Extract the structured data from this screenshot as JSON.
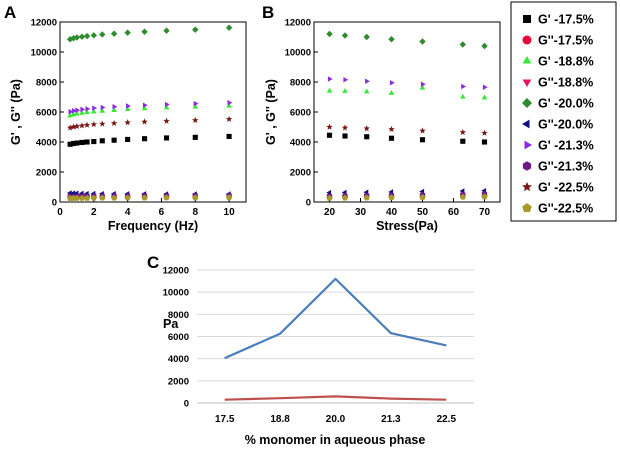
{
  "panel_labels": {
    "a": "A",
    "b": "B",
    "c": "C"
  },
  "legend": [
    {
      "label": "G' -17.5%",
      "color": "#000000",
      "marker": "square"
    },
    {
      "label": "G''-17.5%",
      "color": "#e8003c",
      "marker": "circle"
    },
    {
      "label": "G' -18.8%",
      "color": "#35e835",
      "marker": "triangle-up"
    },
    {
      "label": "G''-18.8%",
      "color": "#ee1166",
      "marker": "triangle-down"
    },
    {
      "label": "G' -20.0%",
      "color": "#2e8b2e",
      "marker": "diamond"
    },
    {
      "label": "G''-20.0%",
      "color": "#101080",
      "marker": "triangle-left"
    },
    {
      "label": "G' -21.3%",
      "color": "#8a2be2",
      "marker": "triangle-right"
    },
    {
      "label": "G''-21.3%",
      "color": "#6a1b8a",
      "marker": "hexagon"
    },
    {
      "label": "G' -22.5%",
      "color": "#7b1616",
      "marker": "star"
    },
    {
      "label": "G''-22.5%",
      "color": "#a89a2a",
      "marker": "pentagon"
    }
  ],
  "chart_data": [
    {
      "id": "A",
      "type": "scatter",
      "xlabel": "Frequency (Hz)",
      "ylabel": "G' , G'' (Pa)",
      "xlim": [
        0,
        11
      ],
      "ylim": [
        0,
        12000
      ],
      "xticks": [
        0,
        2,
        4,
        6,
        8,
        10
      ],
      "yticks": [
        0,
        2000,
        4000,
        6000,
        8000,
        10000,
        12000
      ],
      "x": [
        0.6,
        0.8,
        1.0,
        1.3,
        1.6,
        2.0,
        2.5,
        3.2,
        4.0,
        5.0,
        6.3,
        8.0,
        10.0
      ],
      "series": [
        {
          "name": "G' -17.5%",
          "values": [
            3850,
            3900,
            3930,
            3970,
            4000,
            4030,
            4080,
            4120,
            4170,
            4220,
            4270,
            4310,
            4370
          ]
        },
        {
          "name": "G''-17.5%",
          "values": [
            280,
            290,
            290,
            300,
            300,
            300,
            300,
            310,
            310,
            310,
            320,
            320,
            330
          ]
        },
        {
          "name": "G' -18.8%",
          "values": [
            5750,
            5820,
            5870,
            5920,
            5970,
            6010,
            6060,
            6110,
            6170,
            6220,
            6280,
            6330,
            6400
          ]
        },
        {
          "name": "G''-18.8%",
          "values": [
            420,
            430,
            430,
            440,
            440,
            450,
            450,
            450,
            460,
            460,
            470,
            470,
            480
          ]
        },
        {
          "name": "G' -20.0%",
          "values": [
            10850,
            10920,
            10970,
            11020,
            11060,
            11110,
            11170,
            11220,
            11290,
            11350,
            11420,
            11490,
            11620
          ]
        },
        {
          "name": "G''-20.0%",
          "values": [
            600,
            590,
            580,
            570,
            560,
            560,
            550,
            550,
            540,
            540,
            530,
            530,
            530
          ]
        },
        {
          "name": "G' -21.3%",
          "values": [
            6020,
            6080,
            6120,
            6170,
            6210,
            6260,
            6300,
            6350,
            6400,
            6450,
            6500,
            6560,
            6620
          ]
        },
        {
          "name": "G''-21.3%",
          "values": [
            350,
            360,
            360,
            370,
            370,
            380,
            380,
            390,
            390,
            400,
            400,
            410,
            420
          ]
        },
        {
          "name": "G' -22.5%",
          "values": [
            4950,
            5010,
            5050,
            5090,
            5130,
            5170,
            5210,
            5250,
            5300,
            5350,
            5400,
            5450,
            5520
          ]
        },
        {
          "name": "G''-22.5%",
          "values": [
            250,
            250,
            260,
            260,
            260,
            270,
            270,
            270,
            280,
            280,
            290,
            290,
            300
          ]
        }
      ]
    },
    {
      "id": "B",
      "type": "scatter",
      "xlabel": "Stress(Pa)",
      "ylabel": "G' , G'' (Pa)",
      "xlim": [
        15,
        75
      ],
      "ylim": [
        0,
        12000
      ],
      "xticks": [
        20,
        30,
        40,
        50,
        60,
        70
      ],
      "yticks": [
        0,
        2000,
        4000,
        6000,
        8000,
        10000,
        12000
      ],
      "x": [
        20,
        25,
        32,
        40,
        50,
        63,
        70
      ],
      "series": [
        {
          "name": "G' -17.5%",
          "values": [
            4450,
            4400,
            4350,
            4250,
            4150,
            4050,
            4000
          ]
        },
        {
          "name": "G''-17.5%",
          "values": [
            300,
            310,
            330,
            340,
            350,
            380,
            400
          ]
        },
        {
          "name": "G' -18.8%",
          "values": [
            7400,
            7380,
            7350,
            7250,
            7600,
            7000,
            6950
          ]
        },
        {
          "name": "G''-18.8%",
          "values": [
            430,
            440,
            460,
            480,
            490,
            520,
            540
          ]
        },
        {
          "name": "G' -20.0%",
          "values": [
            11200,
            11100,
            11000,
            10850,
            10700,
            10500,
            10400
          ]
        },
        {
          "name": "G''-20.0%",
          "values": [
            620,
            630,
            650,
            670,
            700,
            730,
            750
          ]
        },
        {
          "name": "G' -21.3%",
          "values": [
            8200,
            8150,
            8050,
            7950,
            7850,
            7700,
            7650
          ]
        },
        {
          "name": "G''-21.3%",
          "values": [
            380,
            400,
            420,
            440,
            470,
            500,
            530
          ]
        },
        {
          "name": "G' -22.5%",
          "values": [
            5000,
            4950,
            4900,
            4850,
            4750,
            4650,
            4600
          ]
        },
        {
          "name": "G''-22.5%",
          "values": [
            260,
            270,
            280,
            300,
            310,
            330,
            350
          ]
        }
      ]
    },
    {
      "id": "C",
      "type": "line",
      "ylabel": "Pa",
      "xlabel": "% monomer in aqueous phase",
      "categories": [
        "17.5",
        "18.8",
        "20.0",
        "21.3",
        "22.5"
      ],
      "ylim": [
        0,
        12000
      ],
      "yticks": [
        0,
        2000,
        4000,
        6000,
        8000,
        10000,
        12000
      ],
      "grid": true,
      "series": [
        {
          "name": "G'",
          "color": "#4a7ebb",
          "values": [
            4050,
            6250,
            11200,
            6300,
            5200
          ]
        },
        {
          "name": "G''",
          "color": "#c0504d",
          "values": [
            300,
            430,
            600,
            400,
            300
          ]
        }
      ]
    }
  ]
}
